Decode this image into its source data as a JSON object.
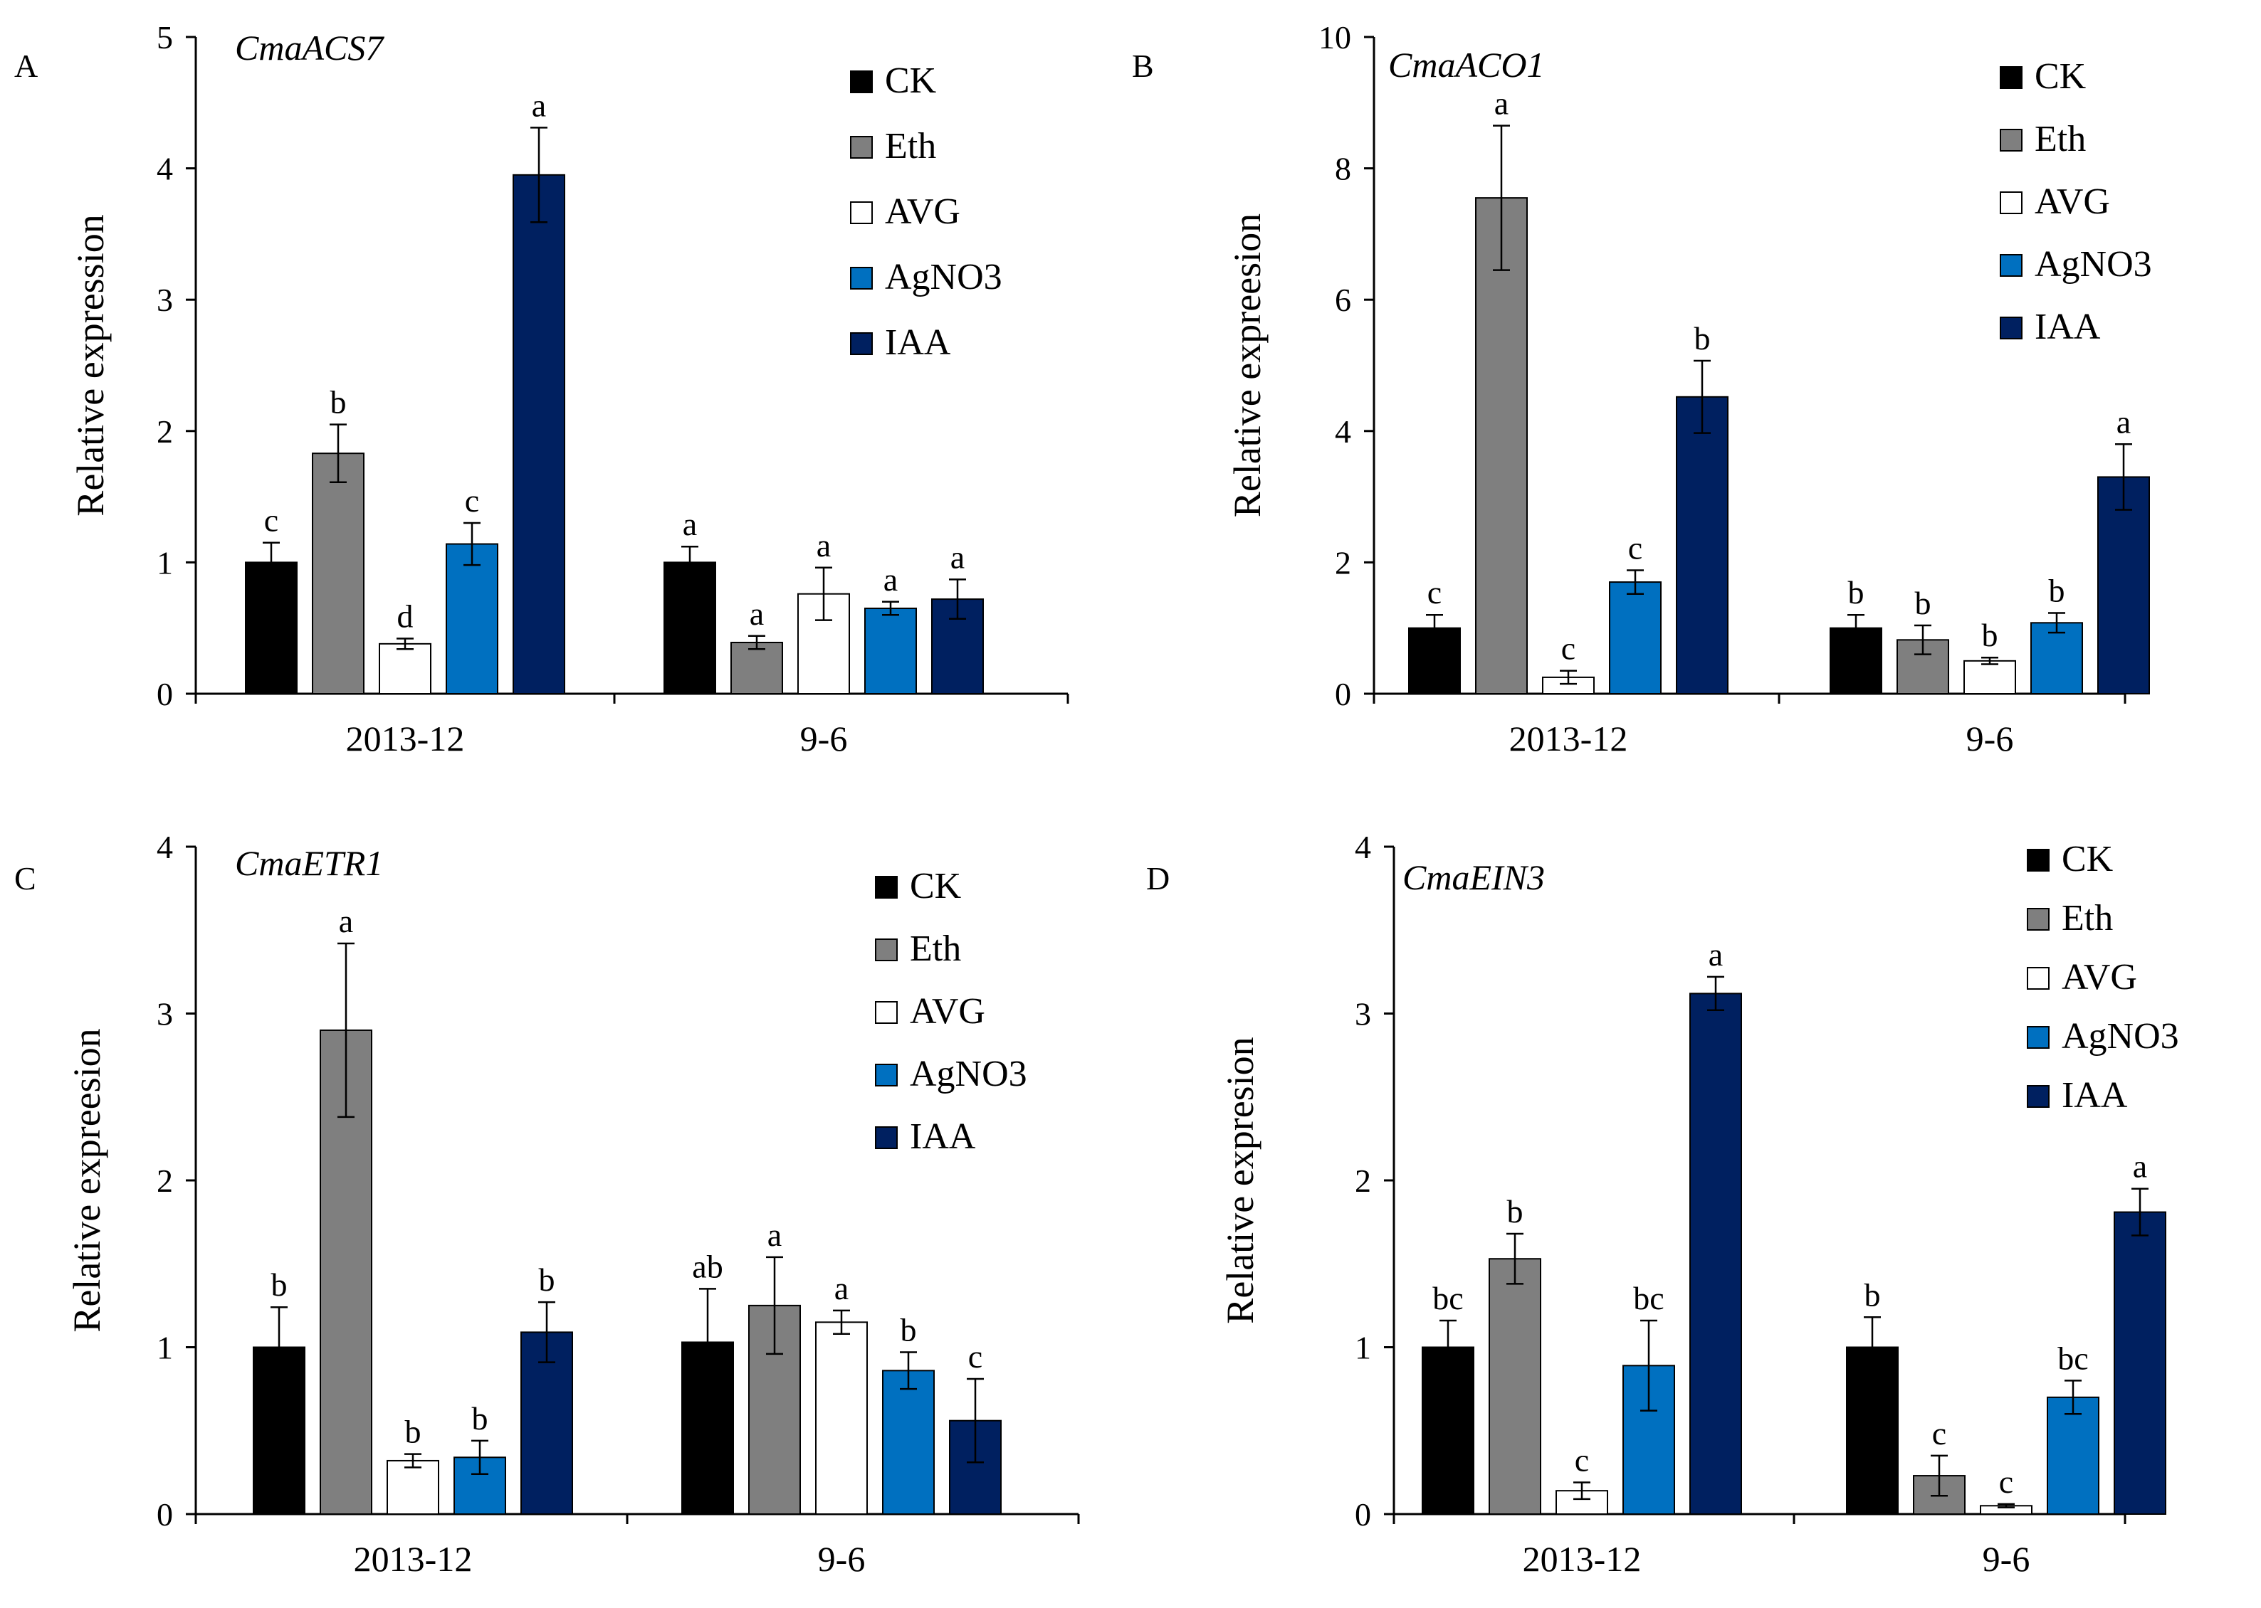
{
  "colors": {
    "CK": "#000000",
    "Eth": "#7f7f7f",
    "AVG": "#ffffff",
    "AgNO3": "#0070c0",
    "IAA": "#002060"
  },
  "chart_data": [
    {
      "panel": "A",
      "title": "CmaACS7",
      "type": "bar",
      "ylabel": "Relative expression",
      "xlabel": "",
      "ylim": [
        0,
        5
      ],
      "ytick_step": 1,
      "yticks": [
        "0",
        "1",
        "2",
        "3",
        "4",
        "5"
      ],
      "categories": [
        "2013-12",
        "9-6"
      ],
      "legend_position": "top-right",
      "series": [
        {
          "name": "CK",
          "values": [
            1.0,
            1.0
          ],
          "errors": [
            0.15,
            0.12
          ],
          "letters": [
            "c",
            "a"
          ]
        },
        {
          "name": "Eth",
          "values": [
            1.83,
            0.39
          ],
          "errors": [
            0.22,
            0.05
          ],
          "letters": [
            "b",
            "a"
          ]
        },
        {
          "name": "AVG",
          "values": [
            0.38,
            0.76
          ],
          "errors": [
            0.04,
            0.2
          ],
          "letters": [
            "d",
            "a"
          ]
        },
        {
          "name": "AgNO3",
          "values": [
            1.14,
            0.65
          ],
          "errors": [
            0.16,
            0.05
          ],
          "letters": [
            "c",
            "a"
          ]
        },
        {
          "name": "IAA",
          "values": [
            3.95,
            0.72
          ],
          "errors": [
            0.36,
            0.15
          ],
          "letters": [
            "a",
            "a"
          ]
        }
      ]
    },
    {
      "panel": "B",
      "title": "CmaACO1",
      "type": "bar",
      "ylabel": "Relative expreesion",
      "xlabel": "",
      "ylim": [
        0,
        10
      ],
      "ytick_step": 2,
      "yticks": [
        "0",
        "2",
        "4",
        "6",
        "8",
        "10"
      ],
      "categories": [
        "2013-12",
        "9-6"
      ],
      "legend_position": "top-right",
      "series": [
        {
          "name": "CK",
          "values": [
            1.0,
            1.0
          ],
          "errors": [
            0.2,
            0.2
          ],
          "letters": [
            "c",
            "b"
          ]
        },
        {
          "name": "Eth",
          "values": [
            7.55,
            0.82
          ],
          "errors": [
            1.1,
            0.22
          ],
          "letters": [
            "a",
            "b"
          ]
        },
        {
          "name": "AVG",
          "values": [
            0.25,
            0.5
          ],
          "errors": [
            0.1,
            0.05
          ],
          "letters": [
            "c",
            "b"
          ]
        },
        {
          "name": "AgNO3",
          "values": [
            1.7,
            1.08
          ],
          "errors": [
            0.18,
            0.15
          ],
          "letters": [
            "c",
            "b"
          ]
        },
        {
          "name": "IAA",
          "values": [
            4.52,
            3.3
          ],
          "errors": [
            0.55,
            0.5
          ],
          "letters": [
            "b",
            "a"
          ]
        }
      ]
    },
    {
      "panel": "C",
      "title": "CmaETR1",
      "type": "bar",
      "ylabel": "Relative expreesion",
      "xlabel": "",
      "ylim": [
        0,
        4
      ],
      "ytick_step": 1,
      "yticks": [
        "0",
        "1",
        "2",
        "3",
        "4"
      ],
      "categories": [
        "2013-12",
        "9-6"
      ],
      "legend_position": "top-right",
      "series": [
        {
          "name": "CK",
          "values": [
            1.0,
            1.03
          ],
          "errors": [
            0.24,
            0.32
          ],
          "letters": [
            "b",
            "ab"
          ]
        },
        {
          "name": "Eth",
          "values": [
            2.9,
            1.25
          ],
          "errors": [
            0.52,
            0.29
          ],
          "letters": [
            "a",
            "a"
          ]
        },
        {
          "name": "AVG",
          "values": [
            0.32,
            1.15
          ],
          "errors": [
            0.04,
            0.07
          ],
          "letters": [
            "b",
            "a"
          ]
        },
        {
          "name": "AgNO3",
          "values": [
            0.34,
            0.86
          ],
          "errors": [
            0.1,
            0.11
          ],
          "letters": [
            "b",
            "b"
          ]
        },
        {
          "name": "IAA",
          "values": [
            1.09,
            0.56
          ],
          "errors": [
            0.18,
            0.25
          ],
          "letters": [
            "b",
            "c"
          ]
        }
      ]
    },
    {
      "panel": "D",
      "title": "CmaEIN3",
      "type": "bar",
      "ylabel": "Relative expresion",
      "xlabel": "",
      "ylim": [
        0,
        4
      ],
      "ytick_step": 1,
      "yticks": [
        "0",
        "1",
        "2",
        "3",
        "4"
      ],
      "categories": [
        "2013-12",
        "9-6"
      ],
      "legend_position": "top-right",
      "series": [
        {
          "name": "CK",
          "values": [
            1.0,
            1.0
          ],
          "errors": [
            0.16,
            0.18
          ],
          "letters": [
            "bc",
            "b"
          ]
        },
        {
          "name": "Eth",
          "values": [
            1.53,
            0.23
          ],
          "errors": [
            0.15,
            0.12
          ],
          "letters": [
            "b",
            "c"
          ]
        },
        {
          "name": "AVG",
          "values": [
            0.14,
            0.05
          ],
          "errors": [
            0.05,
            0.01
          ],
          "letters": [
            "c",
            "c"
          ]
        },
        {
          "name": "AgNO3",
          "values": [
            0.89,
            0.7
          ],
          "errors": [
            0.27,
            0.1
          ],
          "letters": [
            "bc",
            "bc"
          ]
        },
        {
          "name": "IAA",
          "values": [
            3.12,
            1.81
          ],
          "errors": [
            0.1,
            0.14
          ],
          "letters": [
            "a",
            "a"
          ]
        }
      ]
    }
  ]
}
